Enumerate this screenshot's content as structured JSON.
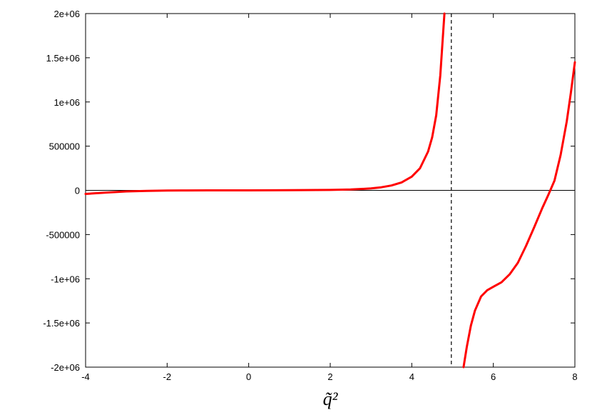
{
  "chart_data": {
    "type": "line",
    "title": "",
    "xlabel": "q̃²",
    "ylabel": "",
    "xlim": [
      -4,
      8
    ],
    "ylim": [
      -2000000,
      2000000
    ],
    "grid": false,
    "x_ticks": [
      -4,
      -2,
      0,
      2,
      4,
      6,
      8
    ],
    "x_tick_labels": [
      "-4",
      "-2",
      "0",
      "2",
      "4",
      "6",
      "8"
    ],
    "y_ticks": [
      -2000000,
      -1500000,
      -1000000,
      -500000,
      0,
      500000,
      1000000,
      1500000,
      2000000
    ],
    "y_tick_labels": [
      "-2e+06",
      "-1.5e+06",
      "-1e+06",
      "-500000",
      "0",
      "500000",
      "1e+06",
      "1.5e+06",
      "2e+06"
    ],
    "zero_line": true,
    "asymptote_x": 4.97,
    "series": [
      {
        "color": "#ff0000",
        "segments": [
          {
            "x": [
              -4,
              -3.5,
              -3,
              -2.5,
              -2,
              -1.5,
              -1,
              0,
              1,
              2,
              2.5,
              3,
              3.25,
              3.5,
              3.75,
              4,
              4.2,
              4.4,
              4.5,
              4.6,
              4.7,
              4.75,
              4.8
            ],
            "y": [
              -40000,
              -25000,
              -12000,
              -6000,
              -2000,
              -800,
              0,
              0,
              1500,
              5000,
              10000,
              22000,
              35000,
              55000,
              90000,
              155000,
              250000,
              440000,
              600000,
              850000,
              1300000,
              1650000,
              2000000
            ]
          },
          {
            "x": [
              5.27,
              5.35,
              5.45,
              5.55,
              5.7,
              5.85,
              6.0,
              6.2,
              6.4,
              6.6,
              6.8,
              7.0,
              7.2,
              7.35,
              7.5,
              7.65,
              7.8,
              7.9,
              8.0
            ],
            "y": [
              -2000000,
              -1770000,
              -1530000,
              -1360000,
              -1200000,
              -1130000,
              -1090000,
              -1040000,
              -950000,
              -820000,
              -630000,
              -420000,
              -200000,
              -50000,
              110000,
              400000,
              780000,
              1100000,
              1450000
            ]
          }
        ]
      }
    ]
  }
}
